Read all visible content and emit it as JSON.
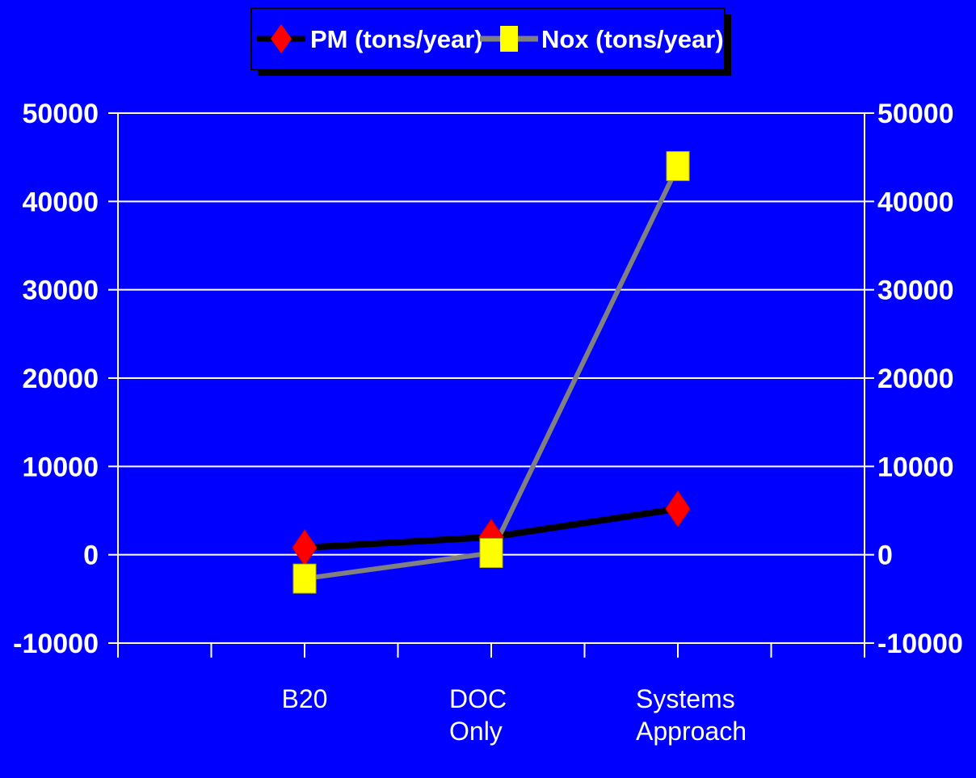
{
  "chart_data": {
    "type": "line",
    "categories": [
      [
        "B20"
      ],
      [
        "DOC",
        "Only"
      ],
      [
        "Systems",
        "Approach"
      ]
    ],
    "category_slots": 8,
    "category_positions": [
      2,
      4,
      6
    ],
    "series": [
      {
        "name": "PM (tons/year)",
        "values": [
          800,
          2000,
          5200
        ],
        "color": "#000000",
        "marker": "diamond",
        "marker_color": "#ff0000"
      },
      {
        "name": "Nox (tons/year)",
        "values": [
          -2700,
          200,
          44000
        ],
        "color": "#808080",
        "marker": "square",
        "marker_color": "#ffff00"
      }
    ],
    "ylim": [
      -10000,
      50000
    ],
    "yticks": [
      -10000,
      0,
      10000,
      20000,
      30000,
      40000,
      50000
    ],
    "ytick_labels": [
      "-10000",
      "0",
      "10000",
      "20000",
      "30000",
      "40000",
      "50000"
    ],
    "secondary_axis": true,
    "grid": true,
    "legend_position": "top",
    "colors": {
      "background": "#0000ff",
      "axis": "#ffffff",
      "text": "#ffffff",
      "legend_bg": "#0000ff"
    }
  }
}
